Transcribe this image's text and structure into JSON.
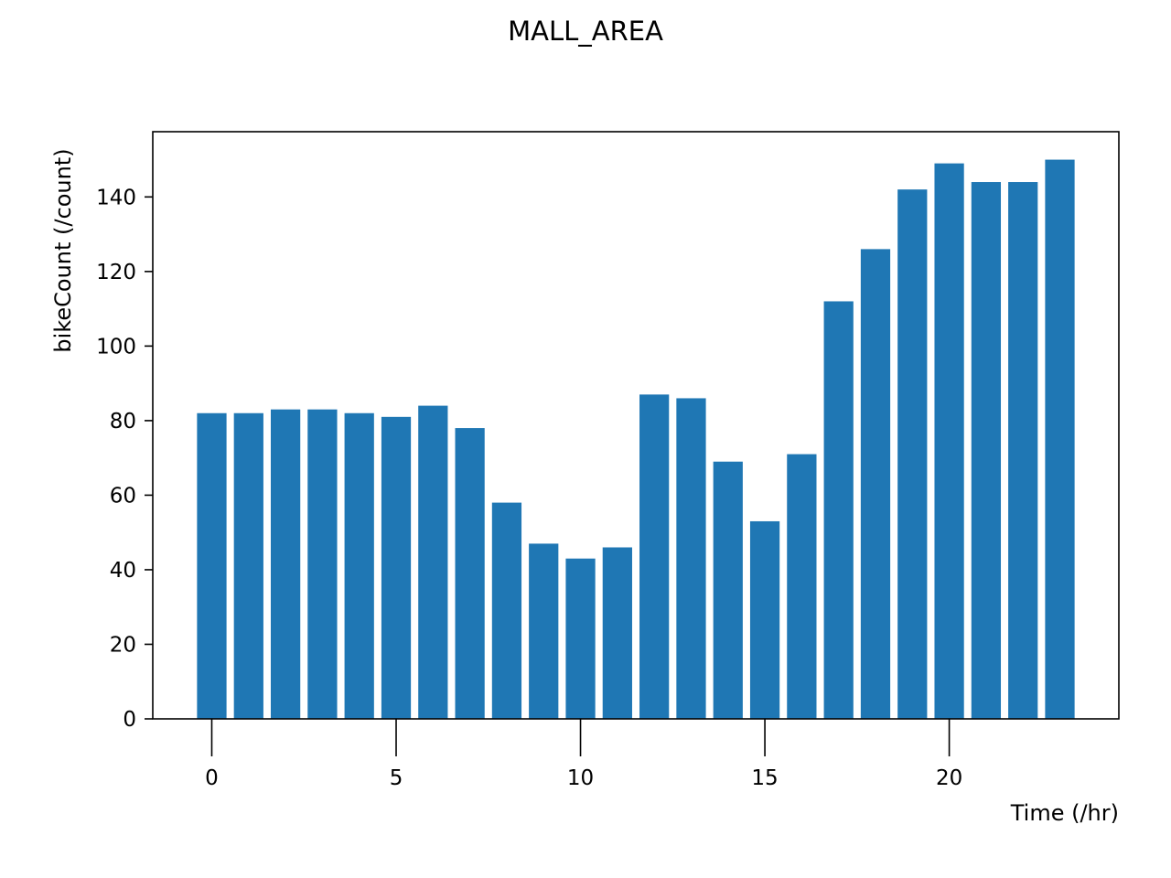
{
  "chart_data": {
    "type": "bar",
    "title": "MALL_AREA",
    "xlabel": "Time (/hr)",
    "ylabel": "bikeCount (/count)",
    "x": [
      0,
      1,
      2,
      3,
      4,
      5,
      6,
      7,
      8,
      9,
      10,
      11,
      12,
      13,
      14,
      15,
      16,
      17,
      18,
      19,
      20,
      21,
      22,
      23
    ],
    "values": [
      82,
      82,
      83,
      83,
      82,
      81,
      84,
      78,
      58,
      47,
      43,
      46,
      87,
      86,
      69,
      53,
      71,
      112,
      126,
      142,
      149,
      144,
      144,
      150
    ],
    "xlim": [
      -1.6,
      24.6
    ],
    "ylim": [
      0,
      157.5
    ],
    "xticks": [
      0,
      5,
      10,
      15,
      20
    ],
    "yticks": [
      0,
      20,
      40,
      60,
      80,
      100,
      120,
      140
    ],
    "bar_color": "#1f77b4",
    "grid": false
  }
}
